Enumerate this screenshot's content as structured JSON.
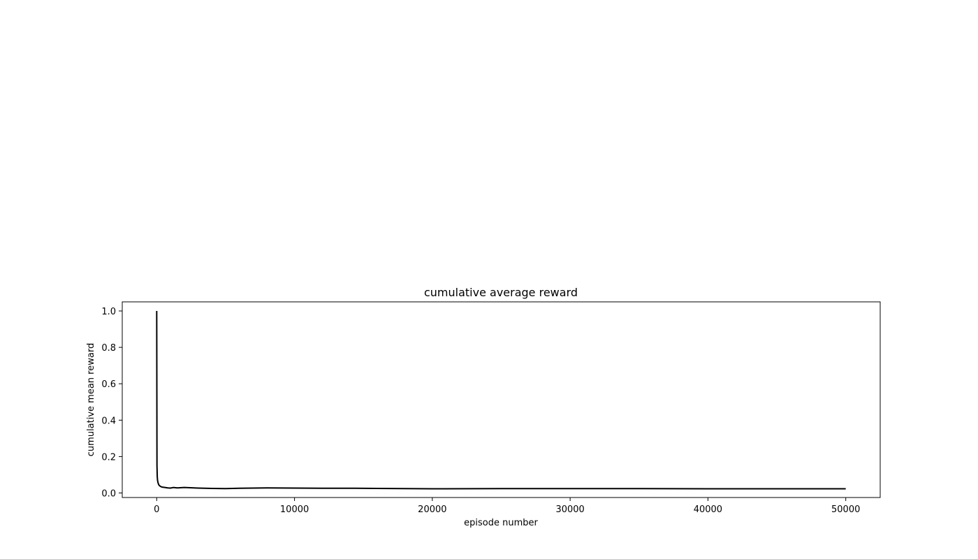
{
  "chart_data": {
    "type": "line",
    "title": "cumulative average reward",
    "xlabel": "episode number",
    "ylabel": "cumulative mean reward",
    "xlim": [
      -2500,
      52500
    ],
    "ylim": [
      -0.025,
      1.05
    ],
    "xticks": [
      0,
      10000,
      20000,
      30000,
      40000,
      50000
    ],
    "xtick_labels": [
      "0",
      "10000",
      "20000",
      "30000",
      "40000",
      "50000"
    ],
    "yticks": [
      0.0,
      0.2,
      0.4,
      0.6,
      0.8,
      1.0
    ],
    "ytick_labels": [
      "0.0",
      "0.2",
      "0.4",
      "0.6",
      "0.8",
      "1.0"
    ],
    "grid": false,
    "line_color": "#000000",
    "series": [
      {
        "x": [
          1,
          20,
          40,
          60,
          100,
          150,
          200,
          300,
          400,
          600,
          800,
          1000,
          1200,
          1500,
          2000,
          3000,
          4000,
          5000,
          6000,
          8000,
          10000,
          12000,
          14000,
          16000,
          18000,
          20000,
          25000,
          30000,
          35000,
          40000,
          45000,
          50000
        ],
        "y": [
          1.0,
          0.15,
          0.09,
          0.07,
          0.055,
          0.045,
          0.04,
          0.035,
          0.032,
          0.03,
          0.028,
          0.027,
          0.03,
          0.028,
          0.03,
          0.027,
          0.025,
          0.024,
          0.026,
          0.028,
          0.027,
          0.026,
          0.026,
          0.025,
          0.024,
          0.023,
          0.024,
          0.024,
          0.024,
          0.023,
          0.023,
          0.023
        ]
      }
    ]
  }
}
